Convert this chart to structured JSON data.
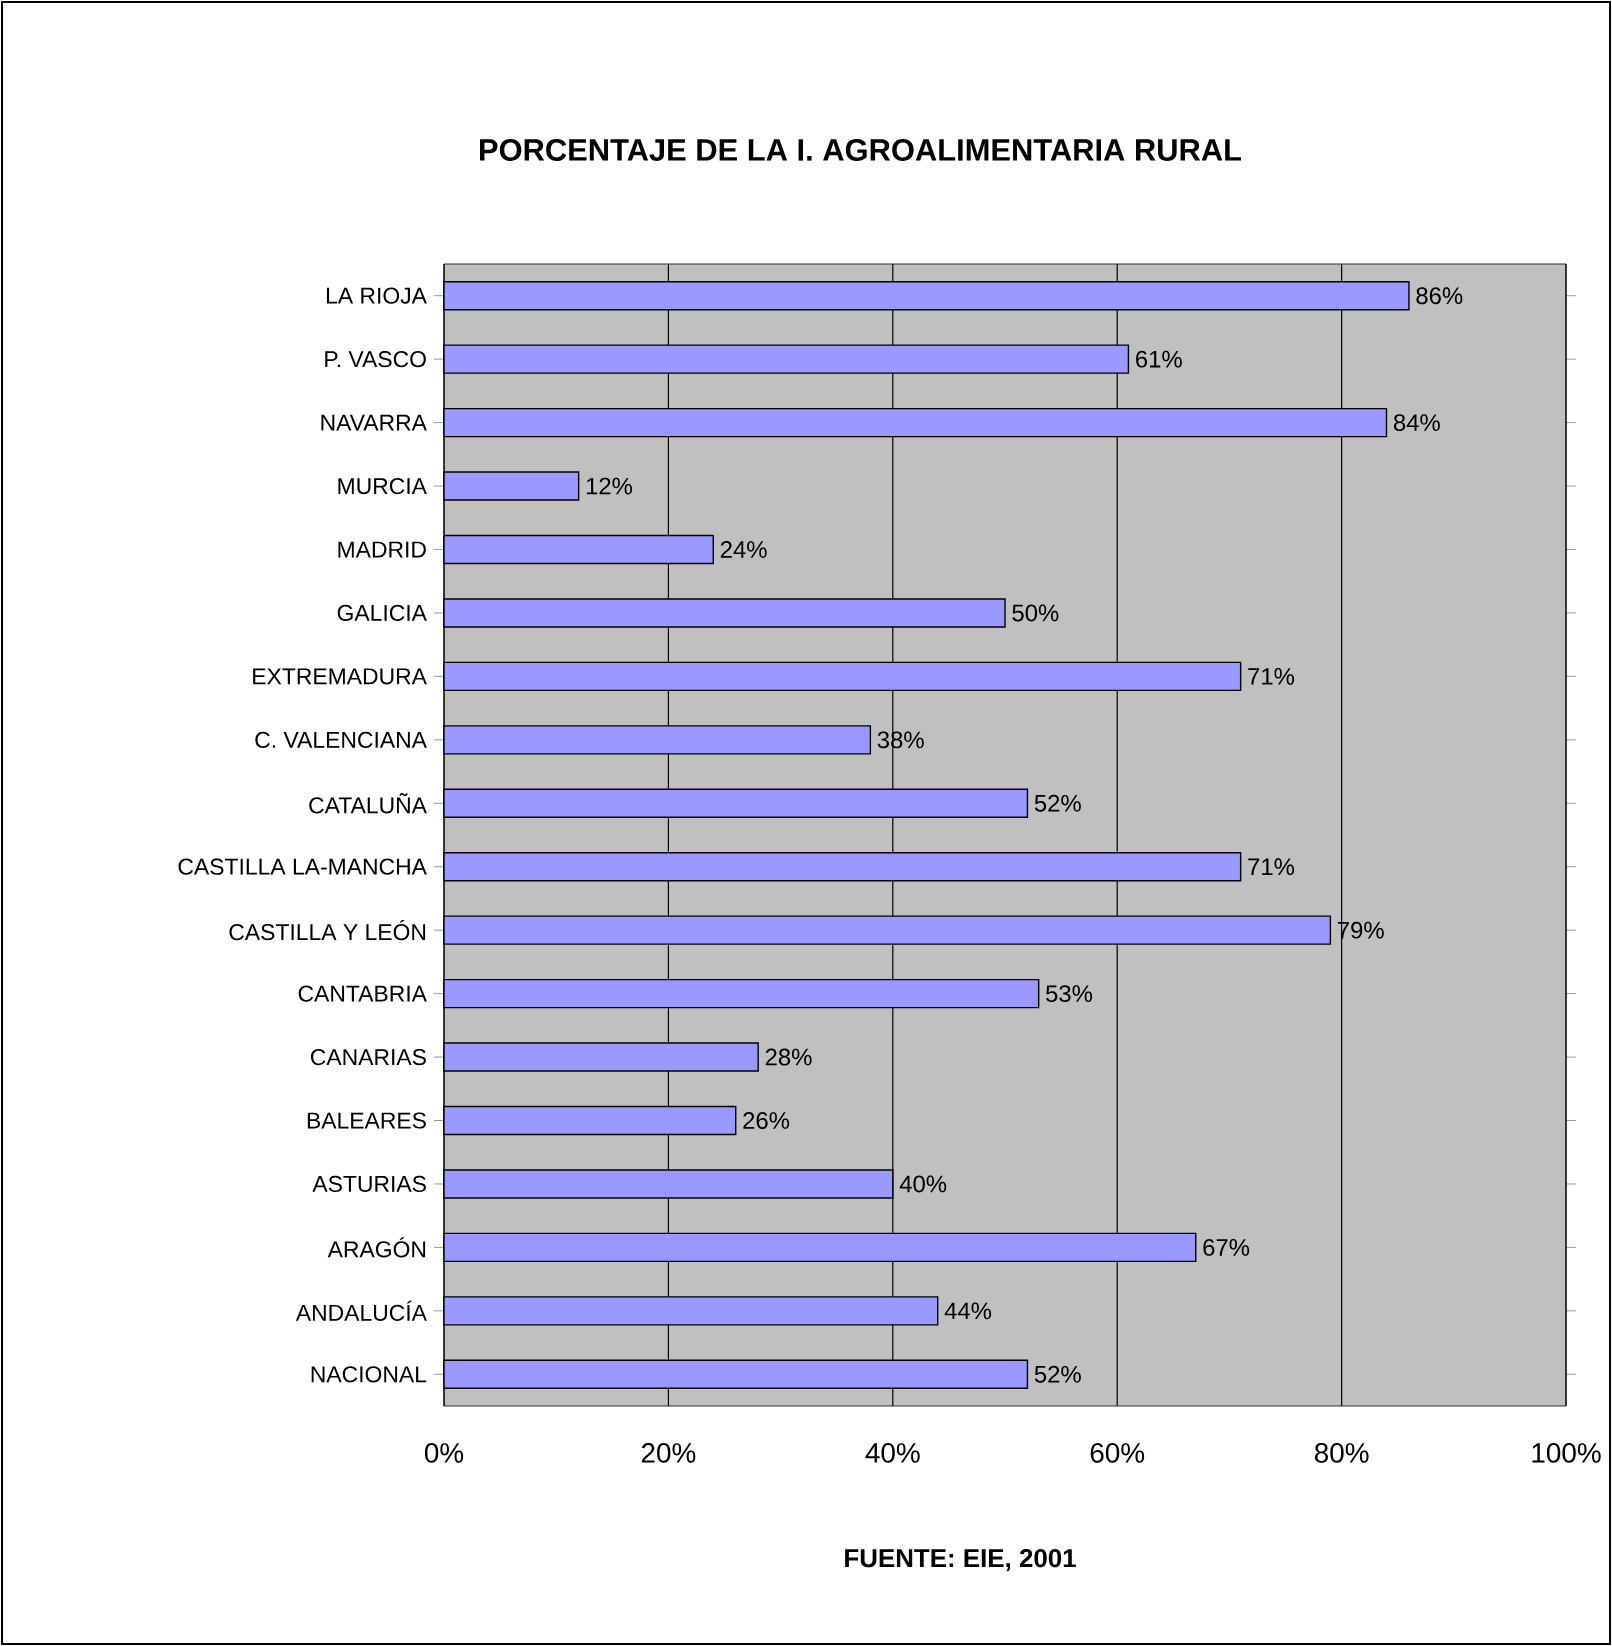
{
  "chart_data": {
    "type": "bar",
    "orientation": "horizontal",
    "title": "PORCENTAJE DE LA I. AGROALIMENTARIA RURAL",
    "categories": [
      "LA RIOJA",
      "P. VASCO",
      "NAVARRA",
      "MURCIA",
      "MADRID",
      "GALICIA",
      "EXTREMADURA",
      "C. VALENCIANA",
      "CATALUÑA",
      "CASTILLA LA-MANCHA",
      "CASTILLA Y LEÓN",
      "CANTABRIA",
      "CANARIAS",
      "BALEARES",
      "ASTURIAS",
      "ARAGÓN",
      "ANDALUCÍA",
      "NACIONAL"
    ],
    "values": [
      86,
      61,
      84,
      12,
      24,
      50,
      71,
      38,
      52,
      71,
      79,
      53,
      28,
      26,
      40,
      67,
      44,
      52
    ],
    "value_labels": [
      "86%",
      "61%",
      "84%",
      "12%",
      "24%",
      "50%",
      "71%",
      "38%",
      "52%",
      "71%",
      "79%",
      "53%",
      "28%",
      "26%",
      "40%",
      "67%",
      "44%",
      "52%"
    ],
    "color": "#9999ff",
    "xlim": [
      0,
      100
    ],
    "xticks": [
      {
        "value": 0,
        "label": "0%"
      },
      {
        "value": 20,
        "label": "20%"
      },
      {
        "value": 40,
        "label": "40%"
      },
      {
        "value": 60,
        "label": "60%"
      },
      {
        "value": 80,
        "label": "80%"
      },
      {
        "value": 100,
        "label": "100%"
      }
    ],
    "grid": "x",
    "annotations": [
      "FUENTE: EIE, 2001"
    ]
  }
}
